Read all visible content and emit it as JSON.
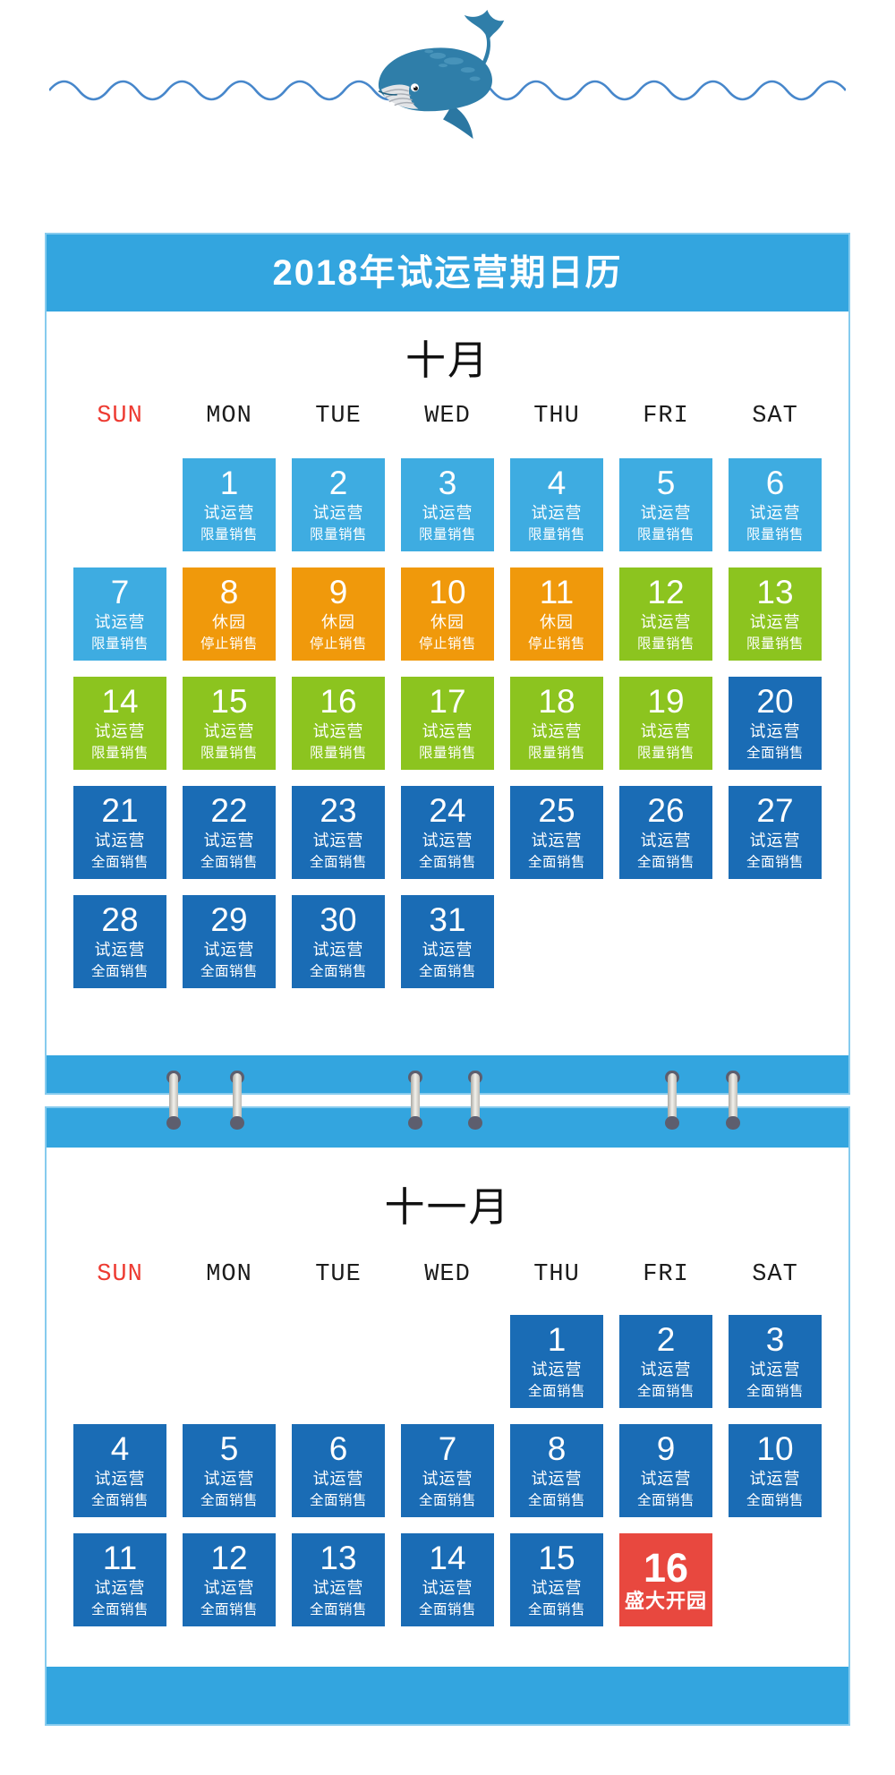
{
  "header": {
    "title": "2018年试运营期日历"
  },
  "colors": {
    "band": "#33A5DF",
    "border": "#86CBEE",
    "lightBlue": "#3EACE1",
    "orange": "#F0990B",
    "green": "#8CC41F",
    "darkBlue": "#1A6CB5",
    "red": "#E8483F",
    "sundayText": "#ED3B32",
    "weekdayText": "#1C1C1C"
  },
  "months": [
    {
      "key": "october",
      "name": "十月",
      "weekdays": [
        "SUN",
        "MON",
        "TUE",
        "WED",
        "THU",
        "FRI",
        "SAT"
      ],
      "days": [
        {
          "n": "1",
          "col": 1,
          "row": 0,
          "color": "lightBlue",
          "lines": [
            "试运营",
            "限量销售"
          ]
        },
        {
          "n": "2",
          "col": 2,
          "row": 0,
          "color": "lightBlue",
          "lines": [
            "试运营",
            "限量销售"
          ]
        },
        {
          "n": "3",
          "col": 3,
          "row": 0,
          "color": "lightBlue",
          "lines": [
            "试运营",
            "限量销售"
          ]
        },
        {
          "n": "4",
          "col": 4,
          "row": 0,
          "color": "lightBlue",
          "lines": [
            "试运营",
            "限量销售"
          ]
        },
        {
          "n": "5",
          "col": 5,
          "row": 0,
          "color": "lightBlue",
          "lines": [
            "试运营",
            "限量销售"
          ]
        },
        {
          "n": "6",
          "col": 6,
          "row": 0,
          "color": "lightBlue",
          "lines": [
            "试运营",
            "限量销售"
          ]
        },
        {
          "n": "7",
          "col": 0,
          "row": 1,
          "color": "lightBlue",
          "lines": [
            "试运营",
            "限量销售"
          ]
        },
        {
          "n": "8",
          "col": 1,
          "row": 1,
          "color": "orange",
          "lines": [
            "休园",
            "停止销售"
          ]
        },
        {
          "n": "9",
          "col": 2,
          "row": 1,
          "color": "orange",
          "lines": [
            "休园",
            "停止销售"
          ]
        },
        {
          "n": "10",
          "col": 3,
          "row": 1,
          "color": "orange",
          "lines": [
            "休园",
            "停止销售"
          ]
        },
        {
          "n": "11",
          "col": 4,
          "row": 1,
          "color": "orange",
          "lines": [
            "休园",
            "停止销售"
          ]
        },
        {
          "n": "12",
          "col": 5,
          "row": 1,
          "color": "green",
          "lines": [
            "试运营",
            "限量销售"
          ]
        },
        {
          "n": "13",
          "col": 6,
          "row": 1,
          "color": "green",
          "lines": [
            "试运营",
            "限量销售"
          ]
        },
        {
          "n": "14",
          "col": 0,
          "row": 2,
          "color": "green",
          "lines": [
            "试运营",
            "限量销售"
          ]
        },
        {
          "n": "15",
          "col": 1,
          "row": 2,
          "color": "green",
          "lines": [
            "试运营",
            "限量销售"
          ]
        },
        {
          "n": "16",
          "col": 2,
          "row": 2,
          "color": "green",
          "lines": [
            "试运营",
            "限量销售"
          ]
        },
        {
          "n": "17",
          "col": 3,
          "row": 2,
          "color": "green",
          "lines": [
            "试运营",
            "限量销售"
          ]
        },
        {
          "n": "18",
          "col": 4,
          "row": 2,
          "color": "green",
          "lines": [
            "试运营",
            "限量销售"
          ]
        },
        {
          "n": "19",
          "col": 5,
          "row": 2,
          "color": "green",
          "lines": [
            "试运营",
            "限量销售"
          ]
        },
        {
          "n": "20",
          "col": 6,
          "row": 2,
          "color": "darkBlue",
          "lines": [
            "试运营",
            "全面销售"
          ]
        },
        {
          "n": "21",
          "col": 0,
          "row": 3,
          "color": "darkBlue",
          "lines": [
            "试运营",
            "全面销售"
          ]
        },
        {
          "n": "22",
          "col": 1,
          "row": 3,
          "color": "darkBlue",
          "lines": [
            "试运营",
            "全面销售"
          ]
        },
        {
          "n": "23",
          "col": 2,
          "row": 3,
          "color": "darkBlue",
          "lines": [
            "试运营",
            "全面销售"
          ]
        },
        {
          "n": "24",
          "col": 3,
          "row": 3,
          "color": "darkBlue",
          "lines": [
            "试运营",
            "全面销售"
          ]
        },
        {
          "n": "25",
          "col": 4,
          "row": 3,
          "color": "darkBlue",
          "lines": [
            "试运营",
            "全面销售"
          ]
        },
        {
          "n": "26",
          "col": 5,
          "row": 3,
          "color": "darkBlue",
          "lines": [
            "试运营",
            "全面销售"
          ]
        },
        {
          "n": "27",
          "col": 6,
          "row": 3,
          "color": "darkBlue",
          "lines": [
            "试运营",
            "全面销售"
          ]
        },
        {
          "n": "28",
          "col": 0,
          "row": 4,
          "color": "darkBlue",
          "lines": [
            "试运营",
            "全面销售"
          ]
        },
        {
          "n": "29",
          "col": 1,
          "row": 4,
          "color": "darkBlue",
          "lines": [
            "试运营",
            "全面销售"
          ]
        },
        {
          "n": "30",
          "col": 2,
          "row": 4,
          "color": "darkBlue",
          "lines": [
            "试运营",
            "全面销售"
          ]
        },
        {
          "n": "31",
          "col": 3,
          "row": 4,
          "color": "darkBlue",
          "lines": [
            "试运营",
            "全面销售"
          ]
        }
      ]
    },
    {
      "key": "november",
      "name": "十一月",
      "weekdays": [
        "SUN",
        "MON",
        "TUE",
        "WED",
        "THU",
        "FRI",
        "SAT"
      ],
      "days": [
        {
          "n": "1",
          "col": 4,
          "row": 0,
          "color": "darkBlue",
          "lines": [
            "试运营",
            "全面销售"
          ]
        },
        {
          "n": "2",
          "col": 5,
          "row": 0,
          "color": "darkBlue",
          "lines": [
            "试运营",
            "全面销售"
          ]
        },
        {
          "n": "3",
          "col": 6,
          "row": 0,
          "color": "darkBlue",
          "lines": [
            "试运营",
            "全面销售"
          ]
        },
        {
          "n": "4",
          "col": 0,
          "row": 1,
          "color": "darkBlue",
          "lines": [
            "试运营",
            "全面销售"
          ]
        },
        {
          "n": "5",
          "col": 1,
          "row": 1,
          "color": "darkBlue",
          "lines": [
            "试运营",
            "全面销售"
          ]
        },
        {
          "n": "6",
          "col": 2,
          "row": 1,
          "color": "darkBlue",
          "lines": [
            "试运营",
            "全面销售"
          ]
        },
        {
          "n": "7",
          "col": 3,
          "row": 1,
          "color": "darkBlue",
          "lines": [
            "试运营",
            "全面销售"
          ]
        },
        {
          "n": "8",
          "col": 4,
          "row": 1,
          "color": "darkBlue",
          "lines": [
            "试运营",
            "全面销售"
          ]
        },
        {
          "n": "9",
          "col": 5,
          "row": 1,
          "color": "darkBlue",
          "lines": [
            "试运营",
            "全面销售"
          ]
        },
        {
          "n": "10",
          "col": 6,
          "row": 1,
          "color": "darkBlue",
          "lines": [
            "试运营",
            "全面销售"
          ]
        },
        {
          "n": "11",
          "col": 0,
          "row": 2,
          "color": "darkBlue",
          "lines": [
            "试运营",
            "全面销售"
          ]
        },
        {
          "n": "12",
          "col": 1,
          "row": 2,
          "color": "darkBlue",
          "lines": [
            "试运营",
            "全面销售"
          ]
        },
        {
          "n": "13",
          "col": 2,
          "row": 2,
          "color": "darkBlue",
          "lines": [
            "试运营",
            "全面销售"
          ]
        },
        {
          "n": "14",
          "col": 3,
          "row": 2,
          "color": "darkBlue",
          "lines": [
            "试运营",
            "全面销售"
          ]
        },
        {
          "n": "15",
          "col": 4,
          "row": 2,
          "color": "darkBlue",
          "lines": [
            "试运营",
            "全面销售"
          ]
        },
        {
          "n": "16",
          "col": 5,
          "row": 2,
          "color": "red",
          "grand": true,
          "lines": [
            "盛大开园"
          ]
        }
      ]
    }
  ]
}
